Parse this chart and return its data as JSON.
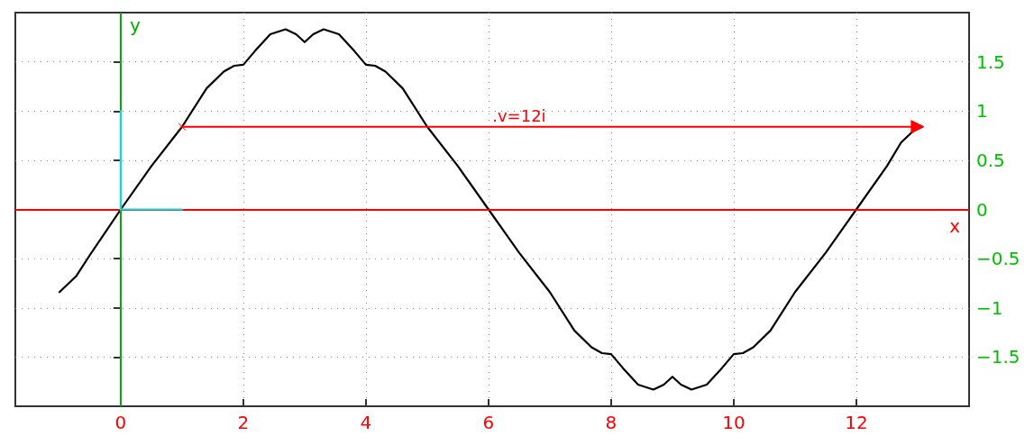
{
  "chart_data": {
    "type": "line",
    "xlabel": "x",
    "ylabel": "y",
    "xlim": [
      -1.72,
      13.84
    ],
    "ylim": [
      -2,
      2
    ],
    "xticks": [
      0,
      2,
      4,
      6,
      8,
      10,
      12
    ],
    "yticks": [
      {
        "value": -1.5,
        "label": "−1.5"
      },
      {
        "value": -1,
        "label": "−1"
      },
      {
        "value": -0.5,
        "label": "−0.5"
      },
      0,
      0.5,
      1,
      1.5
    ],
    "grid": true,
    "marker": "none",
    "line_style": "solid",
    "series": [
      {
        "color": "#000000",
        "x": [
          -1,
          -0.73,
          -0.5,
          0,
          0.5,
          1,
          1.4,
          1.68,
          1.85,
          2.0,
          2.19,
          2.44,
          2.69,
          2.86,
          3.0,
          3.14,
          3.31,
          3.56,
          3.81,
          4.0,
          4.15,
          4.32,
          4.6,
          5,
          5.5,
          6,
          6.5,
          7,
          7.4,
          7.68,
          7.85,
          8,
          8.19,
          8.44,
          8.69,
          8.86,
          9,
          9.14,
          9.31,
          9.56,
          9.81,
          10,
          10.15,
          10.32,
          10.6,
          11,
          11.5,
          12,
          12.5,
          12.73,
          13
        ],
        "values": [
          -0.84,
          -0.68,
          -0.46,
          0,
          0.44,
          0.84,
          1.23,
          1.4,
          1.46,
          1.47,
          1.61,
          1.78,
          1.83,
          1.78,
          1.7,
          1.78,
          1.83,
          1.78,
          1.61,
          1.47,
          1.46,
          1.4,
          1.23,
          0.84,
          0.44,
          0,
          -0.44,
          -0.84,
          -1.23,
          -1.4,
          -1.46,
          -1.47,
          -1.61,
          -1.78,
          -1.83,
          -1.78,
          -1.7,
          -1.78,
          -1.83,
          -1.78,
          -1.61,
          -1.47,
          -1.46,
          -1.4,
          -1.23,
          -0.84,
          -0.44,
          0,
          0.44,
          0.68,
          0.84
        ]
      },
      {
        "color": "#ff0000",
        "x": [
          1,
          13
        ],
        "values": [
          0.84,
          0.84
        ],
        "marker": "cross"
      },
      {
        "color": "#00e0e0",
        "x": [
          0,
          1
        ],
        "values": [
          0,
          0
        ]
      },
      {
        "color": "#00e0e0",
        "x": [
          0,
          0
        ],
        "values": [
          0,
          1
        ]
      }
    ],
    "ref_lines": [
      {
        "axis": "y",
        "value": 0,
        "color": "#ff0000"
      },
      {
        "axis": "x",
        "value": 0,
        "color": "#00b000"
      }
    ],
    "annotations": [
      {
        "text": ".v=12i",
        "x": 6.5,
        "y": 0.84
      }
    ]
  }
}
